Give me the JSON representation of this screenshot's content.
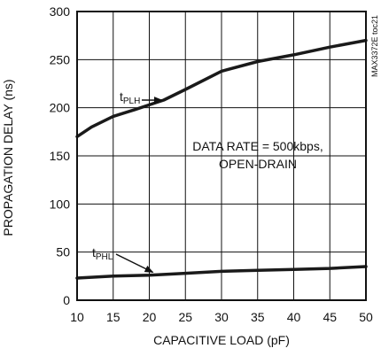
{
  "chart_data": {
    "type": "line",
    "xlabel": "CAPACITIVE LOAD (pF)",
    "ylabel": "PROPAGATION DELAY (ns)",
    "xlim": [
      10,
      50
    ],
    "ylim": [
      0,
      300
    ],
    "x_ticks": [
      10,
      15,
      20,
      25,
      30,
      35,
      40,
      45,
      50
    ],
    "y_ticks": [
      0,
      50,
      100,
      150,
      200,
      250,
      300
    ],
    "grid": true,
    "series": [
      {
        "name_main": "t",
        "name_sub": "PLH",
        "x": [
          10,
          12,
          15,
          18,
          20,
          22,
          25,
          30,
          35,
          40,
          45,
          50
        ],
        "y": [
          170,
          180,
          191,
          198,
          203,
          208,
          219,
          238,
          248,
          255,
          263,
          270
        ]
      },
      {
        "name_main": "t",
        "name_sub": "PHL",
        "x": [
          10,
          15,
          20,
          25,
          30,
          35,
          40,
          45,
          50
        ],
        "y": [
          23,
          25,
          26,
          28,
          30,
          31,
          32,
          33,
          35
        ]
      }
    ],
    "annotation_lines": [
      "DATA RATE = 500kbps,",
      "OPEN-DRAIN"
    ],
    "figure_id": "MAX3372E toc21",
    "line_color": "#1a1a1a"
  }
}
